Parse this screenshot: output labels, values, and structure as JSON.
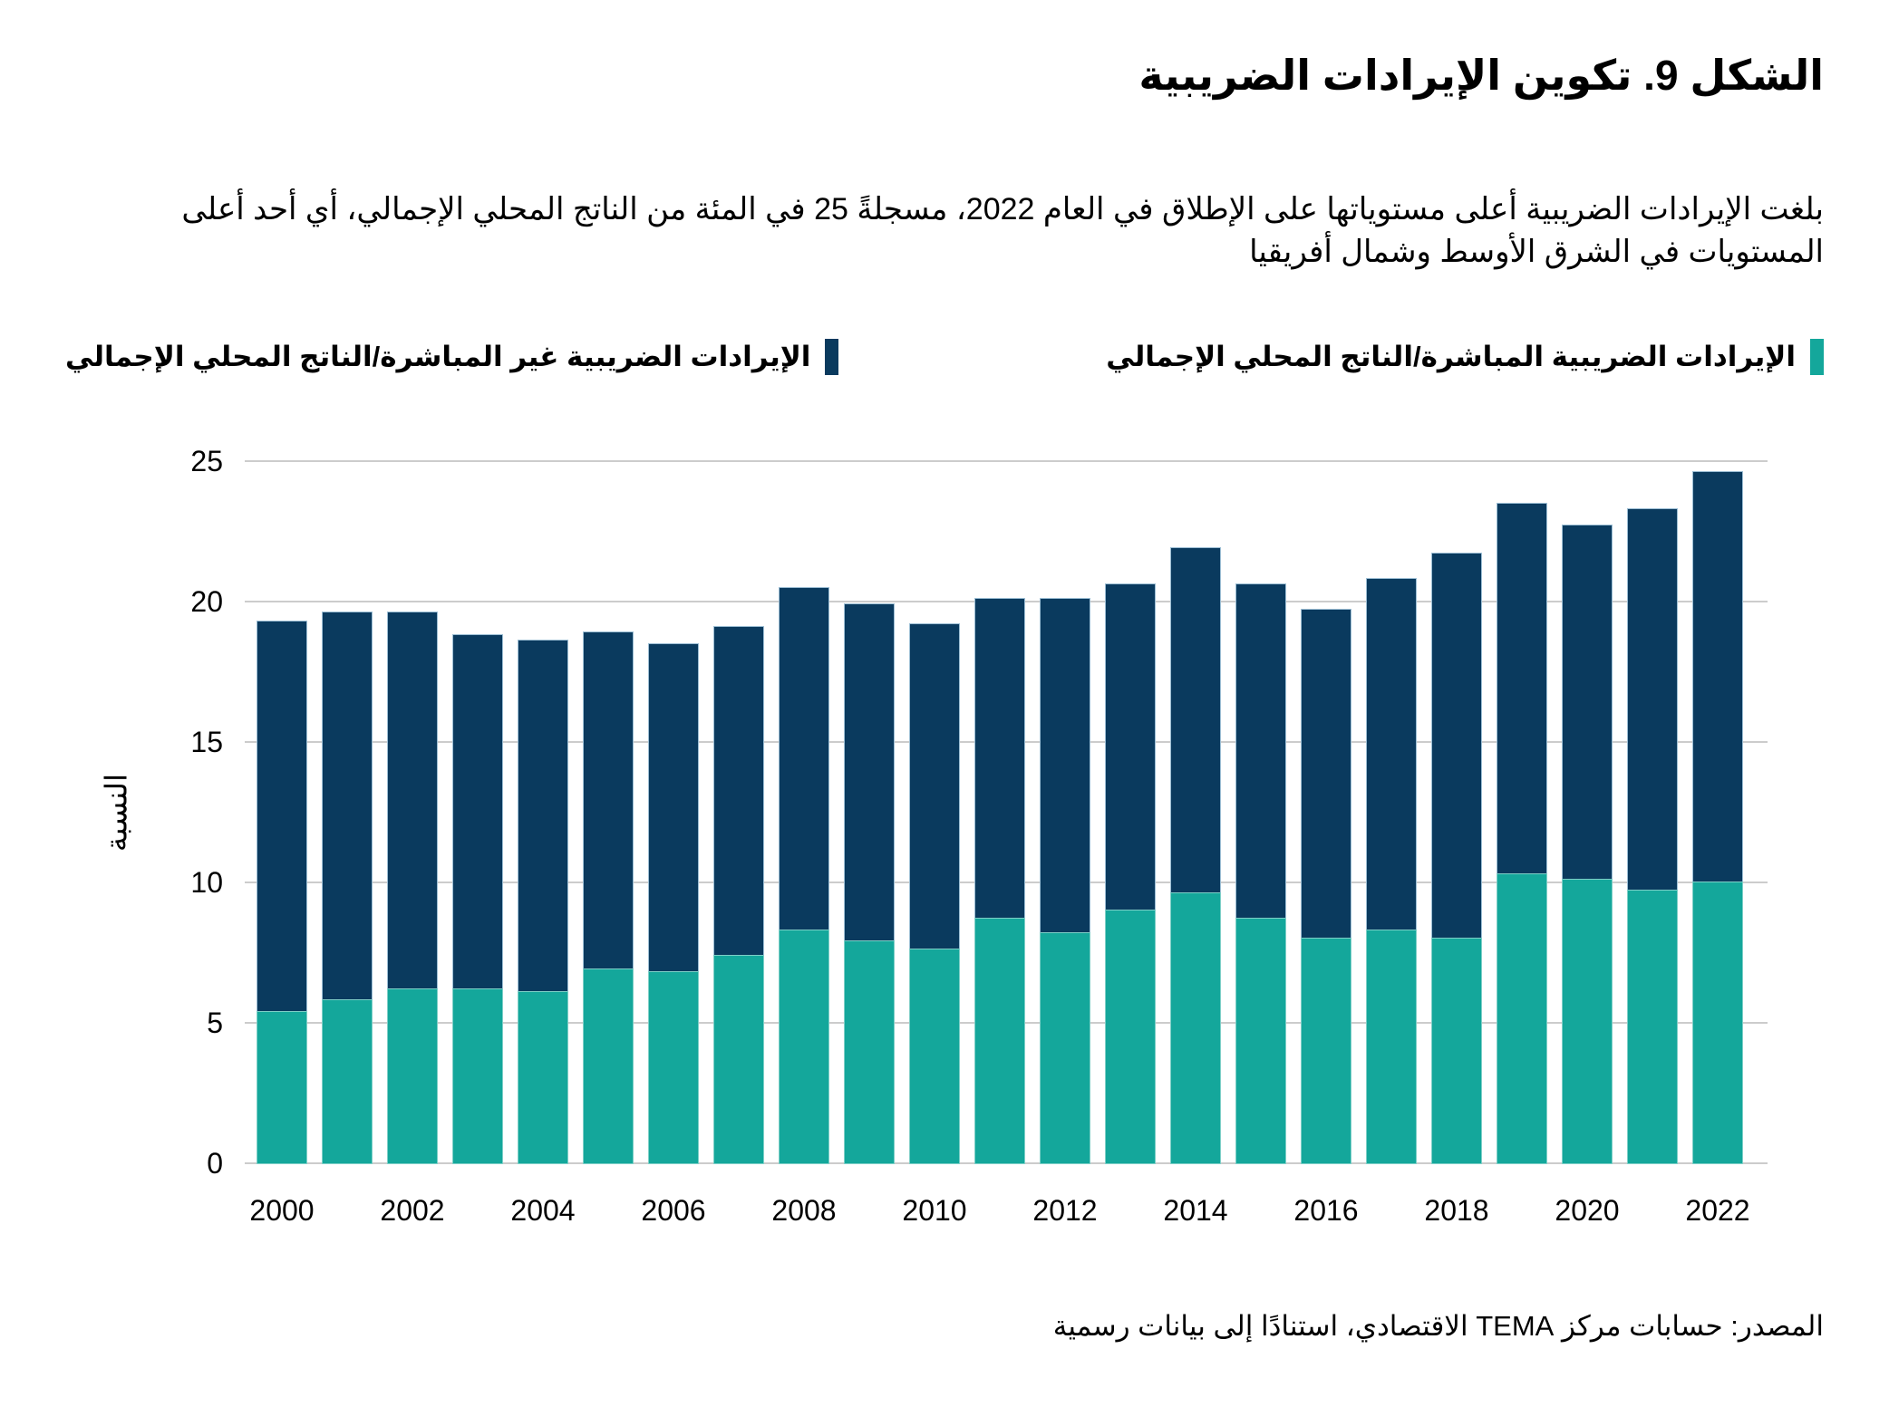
{
  "title": "الشكل 9. تكوين الإيرادات الضريبية",
  "subtitle": "بلغت الإيرادات الضريبية أعلى مستوياتها على الإطلاق في العام 2022، مسجلةً 25 في المئة من الناتج المحلي الإجمالي، أي أحد أعلى المستويات في الشرق الأوسط وشمال أفريقيا",
  "source": "المصدر: حسابات مركز TEMA الاقتصادي، استنادًا إلى بيانات رسمية",
  "legend": [
    {
      "label": "الإيرادات الضريبية المباشرة/الناتج المحلي الإجمالي",
      "color": "#14A79B"
    },
    {
      "label": "الإيرادات الضريبية غير المباشرة/الناتج المحلي الإجمالي",
      "color": "#0A3A5E"
    }
  ],
  "colors": {
    "direct_teal": "#14A79B",
    "indirect_navy": "#0A3A5E",
    "gridline": "#CCCCCC",
    "text": "#000000"
  },
  "chart_data": {
    "type": "bar",
    "stacked": true,
    "title": "الشكل 9. تكوين الإيرادات الضريبية",
    "xlabel": "",
    "ylabel": "النسبة",
    "ylim": [
      0,
      25
    ],
    "yticks": [
      0,
      5,
      10,
      15,
      20,
      25
    ],
    "grid": true,
    "legend_position": "top",
    "categories": [
      2000,
      2001,
      2002,
      2003,
      2004,
      2005,
      2006,
      2007,
      2008,
      2009,
      2010,
      2011,
      2012,
      2013,
      2014,
      2015,
      2016,
      2017,
      2018,
      2019,
      2020,
      2021,
      2022
    ],
    "xtick_labels": [
      "2000",
      "2002",
      "2004",
      "2006",
      "2008",
      "2010",
      "2012",
      "2014",
      "2016",
      "2018",
      "2020",
      "2022"
    ],
    "series": [
      {
        "name": "الإيرادات الضريبية المباشرة/الناتج المحلي الإجمالي",
        "color": "#14A79B",
        "values": [
          5.4,
          5.8,
          6.2,
          6.2,
          6.1,
          6.9,
          6.8,
          7.4,
          8.3,
          7.9,
          7.6,
          8.7,
          8.2,
          9.0,
          9.6,
          8.7,
          8.0,
          8.3,
          8.0,
          10.3,
          10.1,
          9.7,
          10.0
        ]
      },
      {
        "name": "الإيرادات الضريبية غير المباشرة/الناتج المحلي الإجمالي",
        "color": "#0A3A5E",
        "values": [
          13.9,
          13.8,
          13.4,
          12.6,
          12.5,
          12.0,
          11.7,
          11.7,
          12.2,
          12.0,
          11.6,
          11.4,
          11.9,
          11.6,
          12.3,
          11.9,
          11.7,
          12.5,
          13.7,
          13.2,
          12.6,
          13.6,
          14.6
        ]
      }
    ],
    "stacked_totals": [
      19.3,
      19.6,
      19.6,
      18.8,
      18.6,
      18.9,
      18.5,
      19.1,
      20.5,
      19.9,
      19.2,
      20.1,
      20.1,
      20.6,
      21.9,
      20.6,
      19.7,
      20.8,
      21.7,
      23.5,
      22.7,
      23.3,
      24.6
    ]
  }
}
